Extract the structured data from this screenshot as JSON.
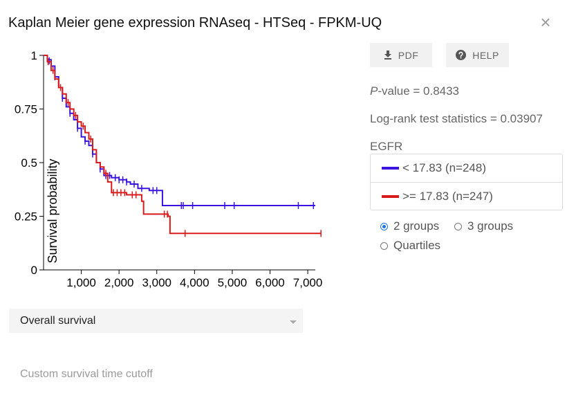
{
  "dialog": {
    "title": "Kaplan Meier gene expression RNAseq - HTSeq - FPKM-UQ",
    "close_glyph": "×"
  },
  "buttons": {
    "pdf": "PDF",
    "help": "HELP",
    "pdf_icon": "download-icon",
    "help_icon": "help-icon"
  },
  "stats": {
    "p_label": "P",
    "p_rest": "-value = 0.8433",
    "logrank": "Log-rank test statistics = 0.03907"
  },
  "gene": "EGFR",
  "legend": [
    {
      "label": "< 17.83 (n=248)",
      "color": "#3a13e0"
    },
    {
      "label": ">= 17.83 (n=247)",
      "color": "#d91a1a"
    }
  ],
  "grouping": {
    "options": [
      "2 groups",
      "3 groups",
      "Quartiles"
    ],
    "selected": "2 groups"
  },
  "survival_select": {
    "value": "Overall survival"
  },
  "cutoff": {
    "placeholder": "Custom survival time cutoff"
  },
  "chart_data": {
    "type": "line",
    "ylabel": "Survival probability",
    "xlim": [
      0,
      7200
    ],
    "ylim": [
      0,
      1
    ],
    "xticks": [
      1000,
      2000,
      3000,
      4000,
      5000,
      6000,
      7000
    ],
    "xtick_labels": [
      "1,000",
      "2,000",
      "3,000",
      "4,000",
      "5,000",
      "6,000",
      "7,000"
    ],
    "yticks": [
      0,
      0.25,
      0.5,
      0.75,
      1
    ],
    "ytick_labels": [
      "0",
      "0.25",
      "0.5",
      "0.75",
      "1"
    ],
    "series": [
      {
        "name": "< 17.83 (n=248)",
        "color": "#3a13e0",
        "steps": [
          [
            0,
            1
          ],
          [
            100,
            0.98
          ],
          [
            200,
            0.95
          ],
          [
            300,
            0.9
          ],
          [
            400,
            0.85
          ],
          [
            500,
            0.8
          ],
          [
            600,
            0.76
          ],
          [
            700,
            0.73
          ],
          [
            800,
            0.7
          ],
          [
            900,
            0.66
          ],
          [
            1000,
            0.62
          ],
          [
            1100,
            0.6
          ],
          [
            1200,
            0.58
          ],
          [
            1300,
            0.54
          ],
          [
            1400,
            0.5
          ],
          [
            1500,
            0.47
          ],
          [
            1600,
            0.44
          ],
          [
            1800,
            0.43
          ],
          [
            2000,
            0.42
          ],
          [
            2200,
            0.41
          ],
          [
            2300,
            0.4
          ],
          [
            2500,
            0.38
          ],
          [
            2800,
            0.37
          ],
          [
            3150,
            0.3
          ],
          [
            7200,
            0.3
          ]
        ],
        "censored": [
          [
            150,
            0.975
          ],
          [
            300,
            0.9
          ],
          [
            500,
            0.8
          ],
          [
            700,
            0.73
          ],
          [
            900,
            0.66
          ],
          [
            1100,
            0.6
          ],
          [
            1300,
            0.54
          ],
          [
            1500,
            0.47
          ],
          [
            1650,
            0.44
          ],
          [
            1750,
            0.44
          ],
          [
            1900,
            0.43
          ],
          [
            2000,
            0.42
          ],
          [
            2100,
            0.42
          ],
          [
            2200,
            0.41
          ],
          [
            2400,
            0.4
          ],
          [
            2600,
            0.38
          ],
          [
            2900,
            0.37
          ],
          [
            3000,
            0.37
          ],
          [
            3650,
            0.3
          ],
          [
            3700,
            0.3
          ],
          [
            3950,
            0.3
          ],
          [
            4800,
            0.3
          ],
          [
            5050,
            0.3
          ],
          [
            6750,
            0.3
          ],
          [
            7150,
            0.3
          ]
        ]
      },
      {
        "name": ">= 17.83 (n=247)",
        "color": "#d91a1a",
        "steps": [
          [
            0,
            1
          ],
          [
            100,
            0.97
          ],
          [
            200,
            0.93
          ],
          [
            300,
            0.89
          ],
          [
            400,
            0.85
          ],
          [
            500,
            0.82
          ],
          [
            600,
            0.78
          ],
          [
            700,
            0.75
          ],
          [
            800,
            0.72
          ],
          [
            900,
            0.69
          ],
          [
            1000,
            0.67
          ],
          [
            1100,
            0.64
          ],
          [
            1200,
            0.61
          ],
          [
            1300,
            0.56
          ],
          [
            1400,
            0.5
          ],
          [
            1500,
            0.48
          ],
          [
            1600,
            0.45
          ],
          [
            1700,
            0.41
          ],
          [
            1800,
            0.36
          ],
          [
            2200,
            0.35
          ],
          [
            2600,
            0.32
          ],
          [
            2650,
            0.26
          ],
          [
            3300,
            0.25
          ],
          [
            3350,
            0.17
          ],
          [
            7350,
            0.17
          ]
        ],
        "censored": [
          [
            120,
            0.97
          ],
          [
            250,
            0.93
          ],
          [
            450,
            0.85
          ],
          [
            650,
            0.78
          ],
          [
            850,
            0.72
          ],
          [
            1050,
            0.67
          ],
          [
            1250,
            0.61
          ],
          [
            1650,
            0.45
          ],
          [
            1850,
            0.36
          ],
          [
            1950,
            0.36
          ],
          [
            2050,
            0.36
          ],
          [
            2150,
            0.36
          ],
          [
            2350,
            0.35
          ],
          [
            2450,
            0.35
          ],
          [
            3200,
            0.26
          ],
          [
            3280,
            0.26
          ],
          [
            3750,
            0.17
          ],
          [
            7350,
            0.17
          ]
        ]
      }
    ]
  }
}
